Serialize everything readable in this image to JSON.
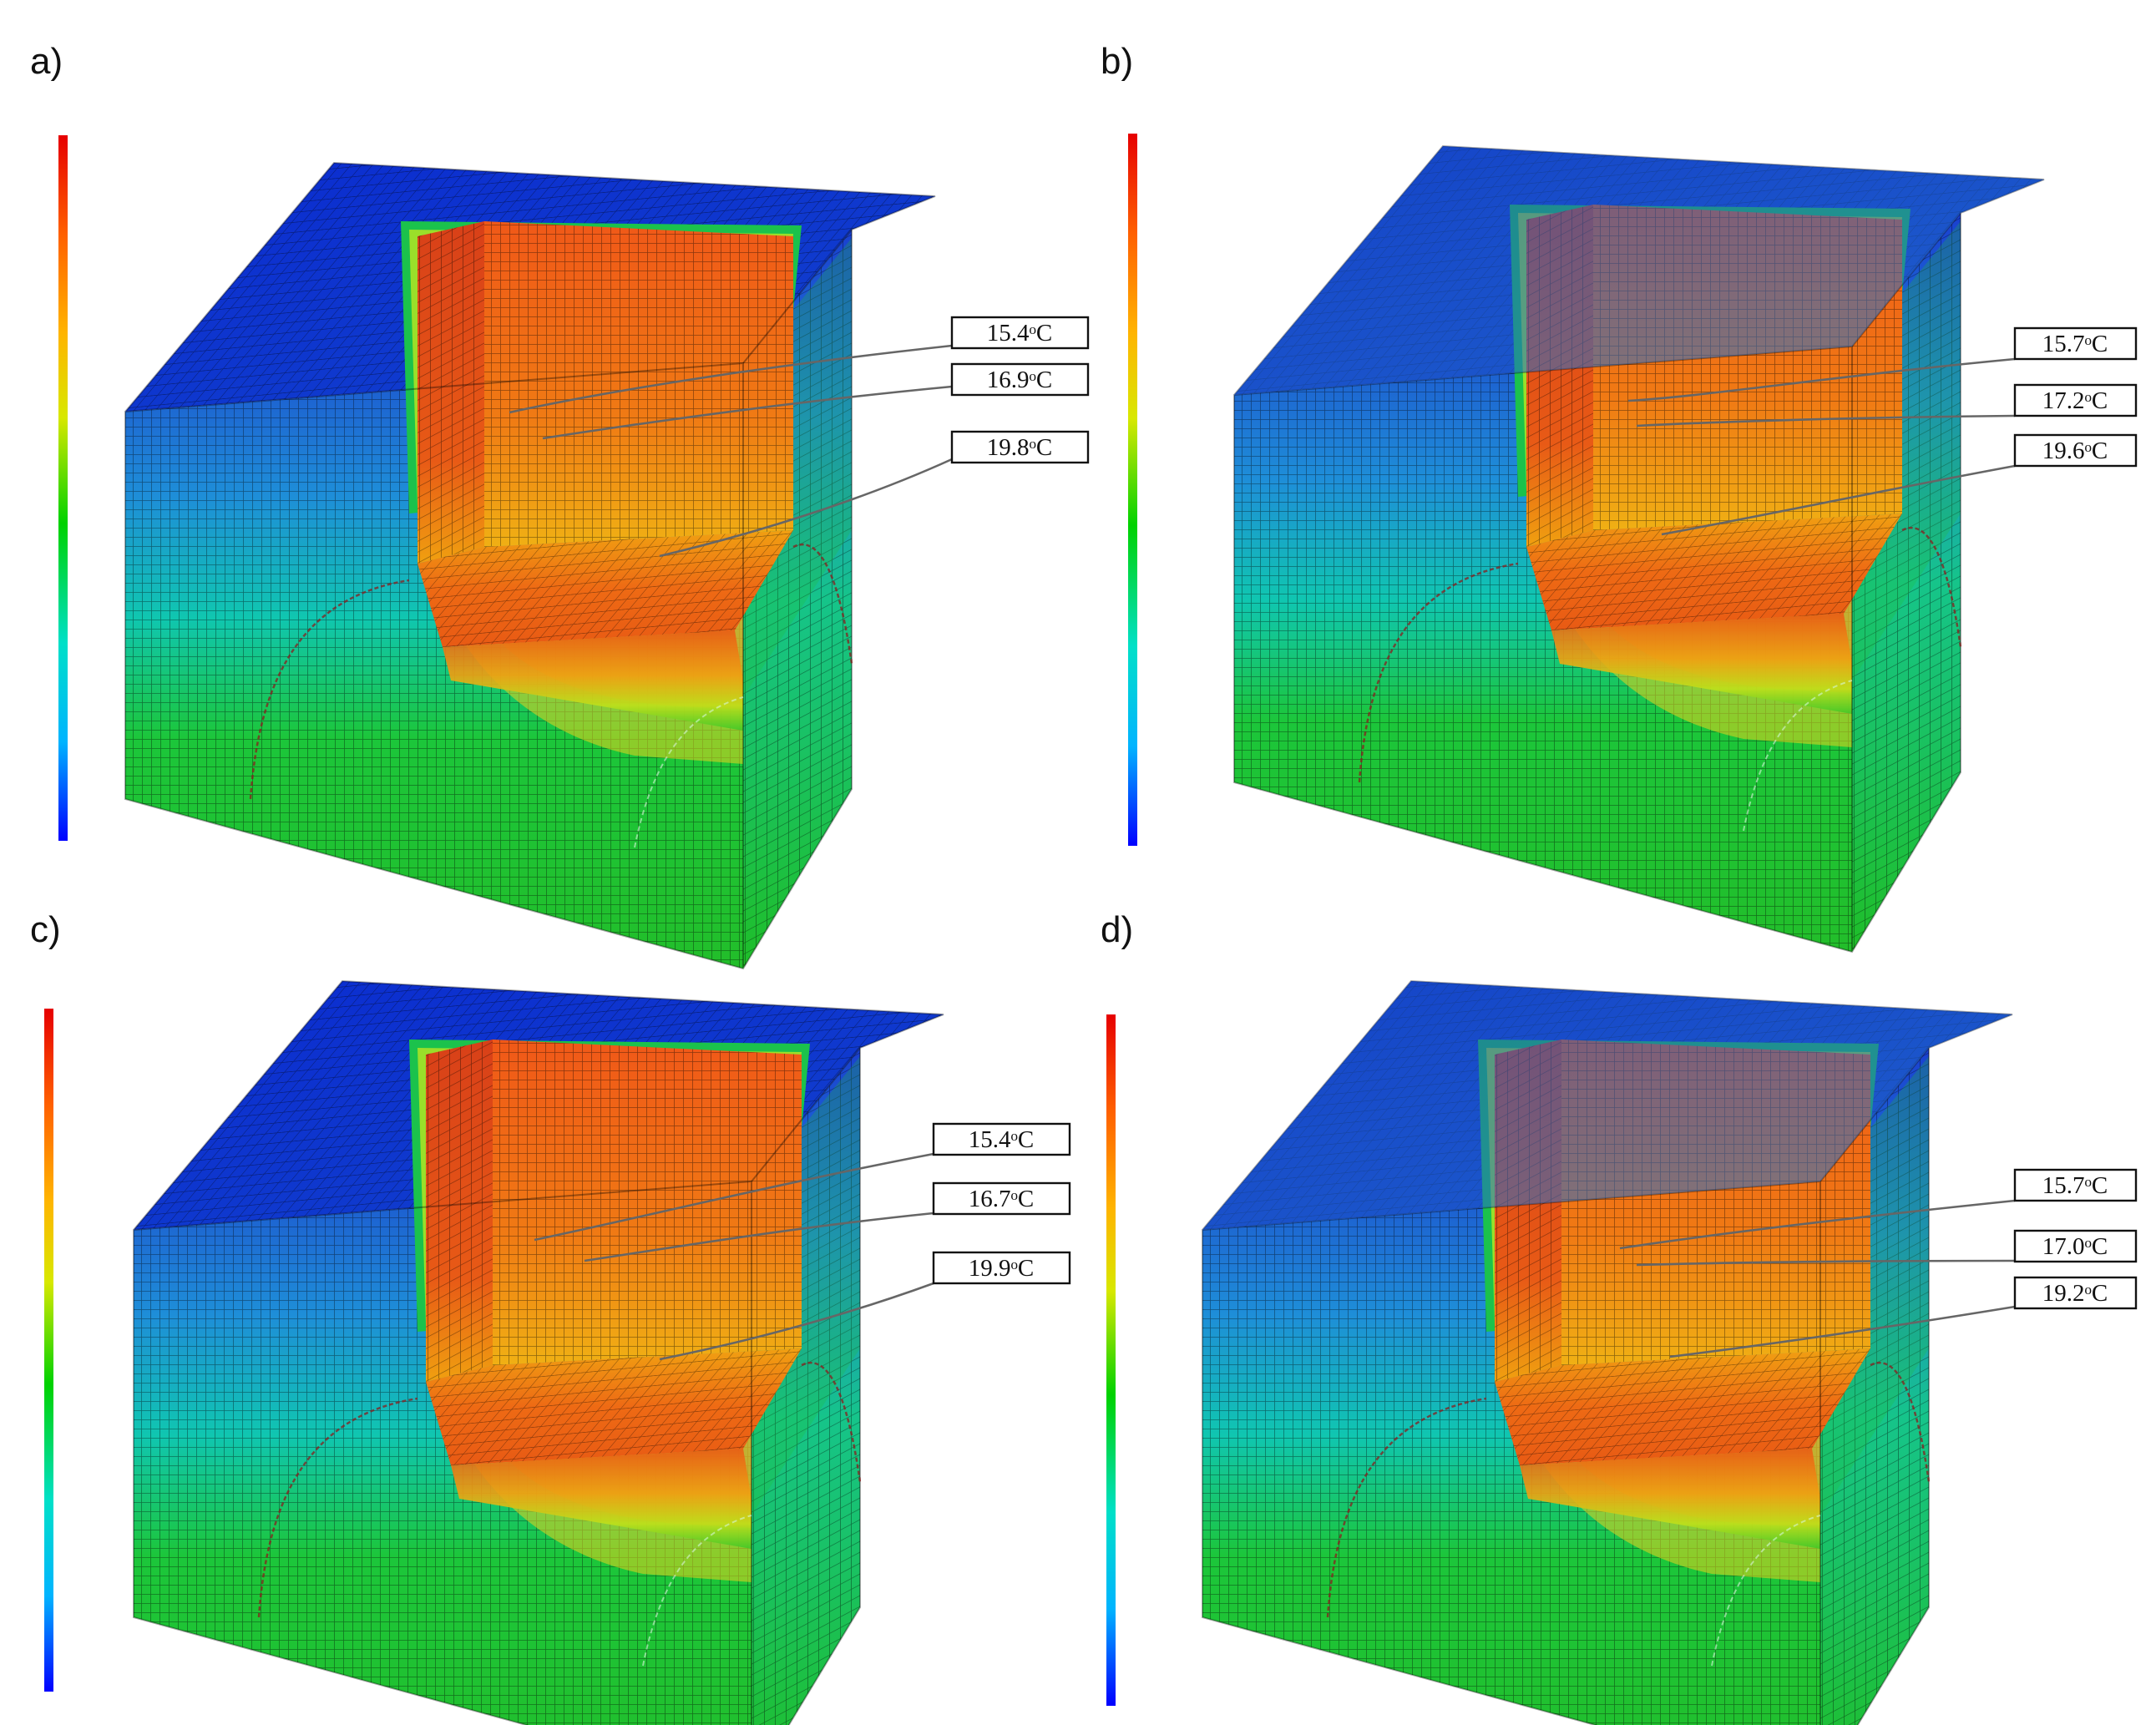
{
  "panels": [
    {
      "id": "a",
      "label": "a)",
      "callouts": [
        "15.4ᵒC",
        "16.9ᵒC",
        "19.8ᵒC"
      ]
    },
    {
      "id": "b",
      "label": "b)",
      "callouts": [
        "15.7ᵒC",
        "17.2ᵒC",
        "19.6ᵒC"
      ]
    },
    {
      "id": "c",
      "label": "c)",
      "callouts": [
        "15.4ᵒC",
        "16.7ᵒC",
        "19.9ᵒC"
      ]
    },
    {
      "id": "d",
      "label": "d)",
      "callouts": [
        "15.7ᵒC",
        "17.0ᵒC",
        "19.2ᵒC"
      ]
    }
  ],
  "colormap": [
    "#0000ff",
    "#00b4ff",
    "#00e0c8",
    "#00d200",
    "#d8e800",
    "#ffb400",
    "#ff6000",
    "#e60000"
  ],
  "colors": {
    "cold_top": "#0a2fd0",
    "cold_side": "#1f64c8",
    "warm_ground": "#22c22a",
    "heated_wall": "#e4501a",
    "heated_floor": "#ee6418"
  }
}
